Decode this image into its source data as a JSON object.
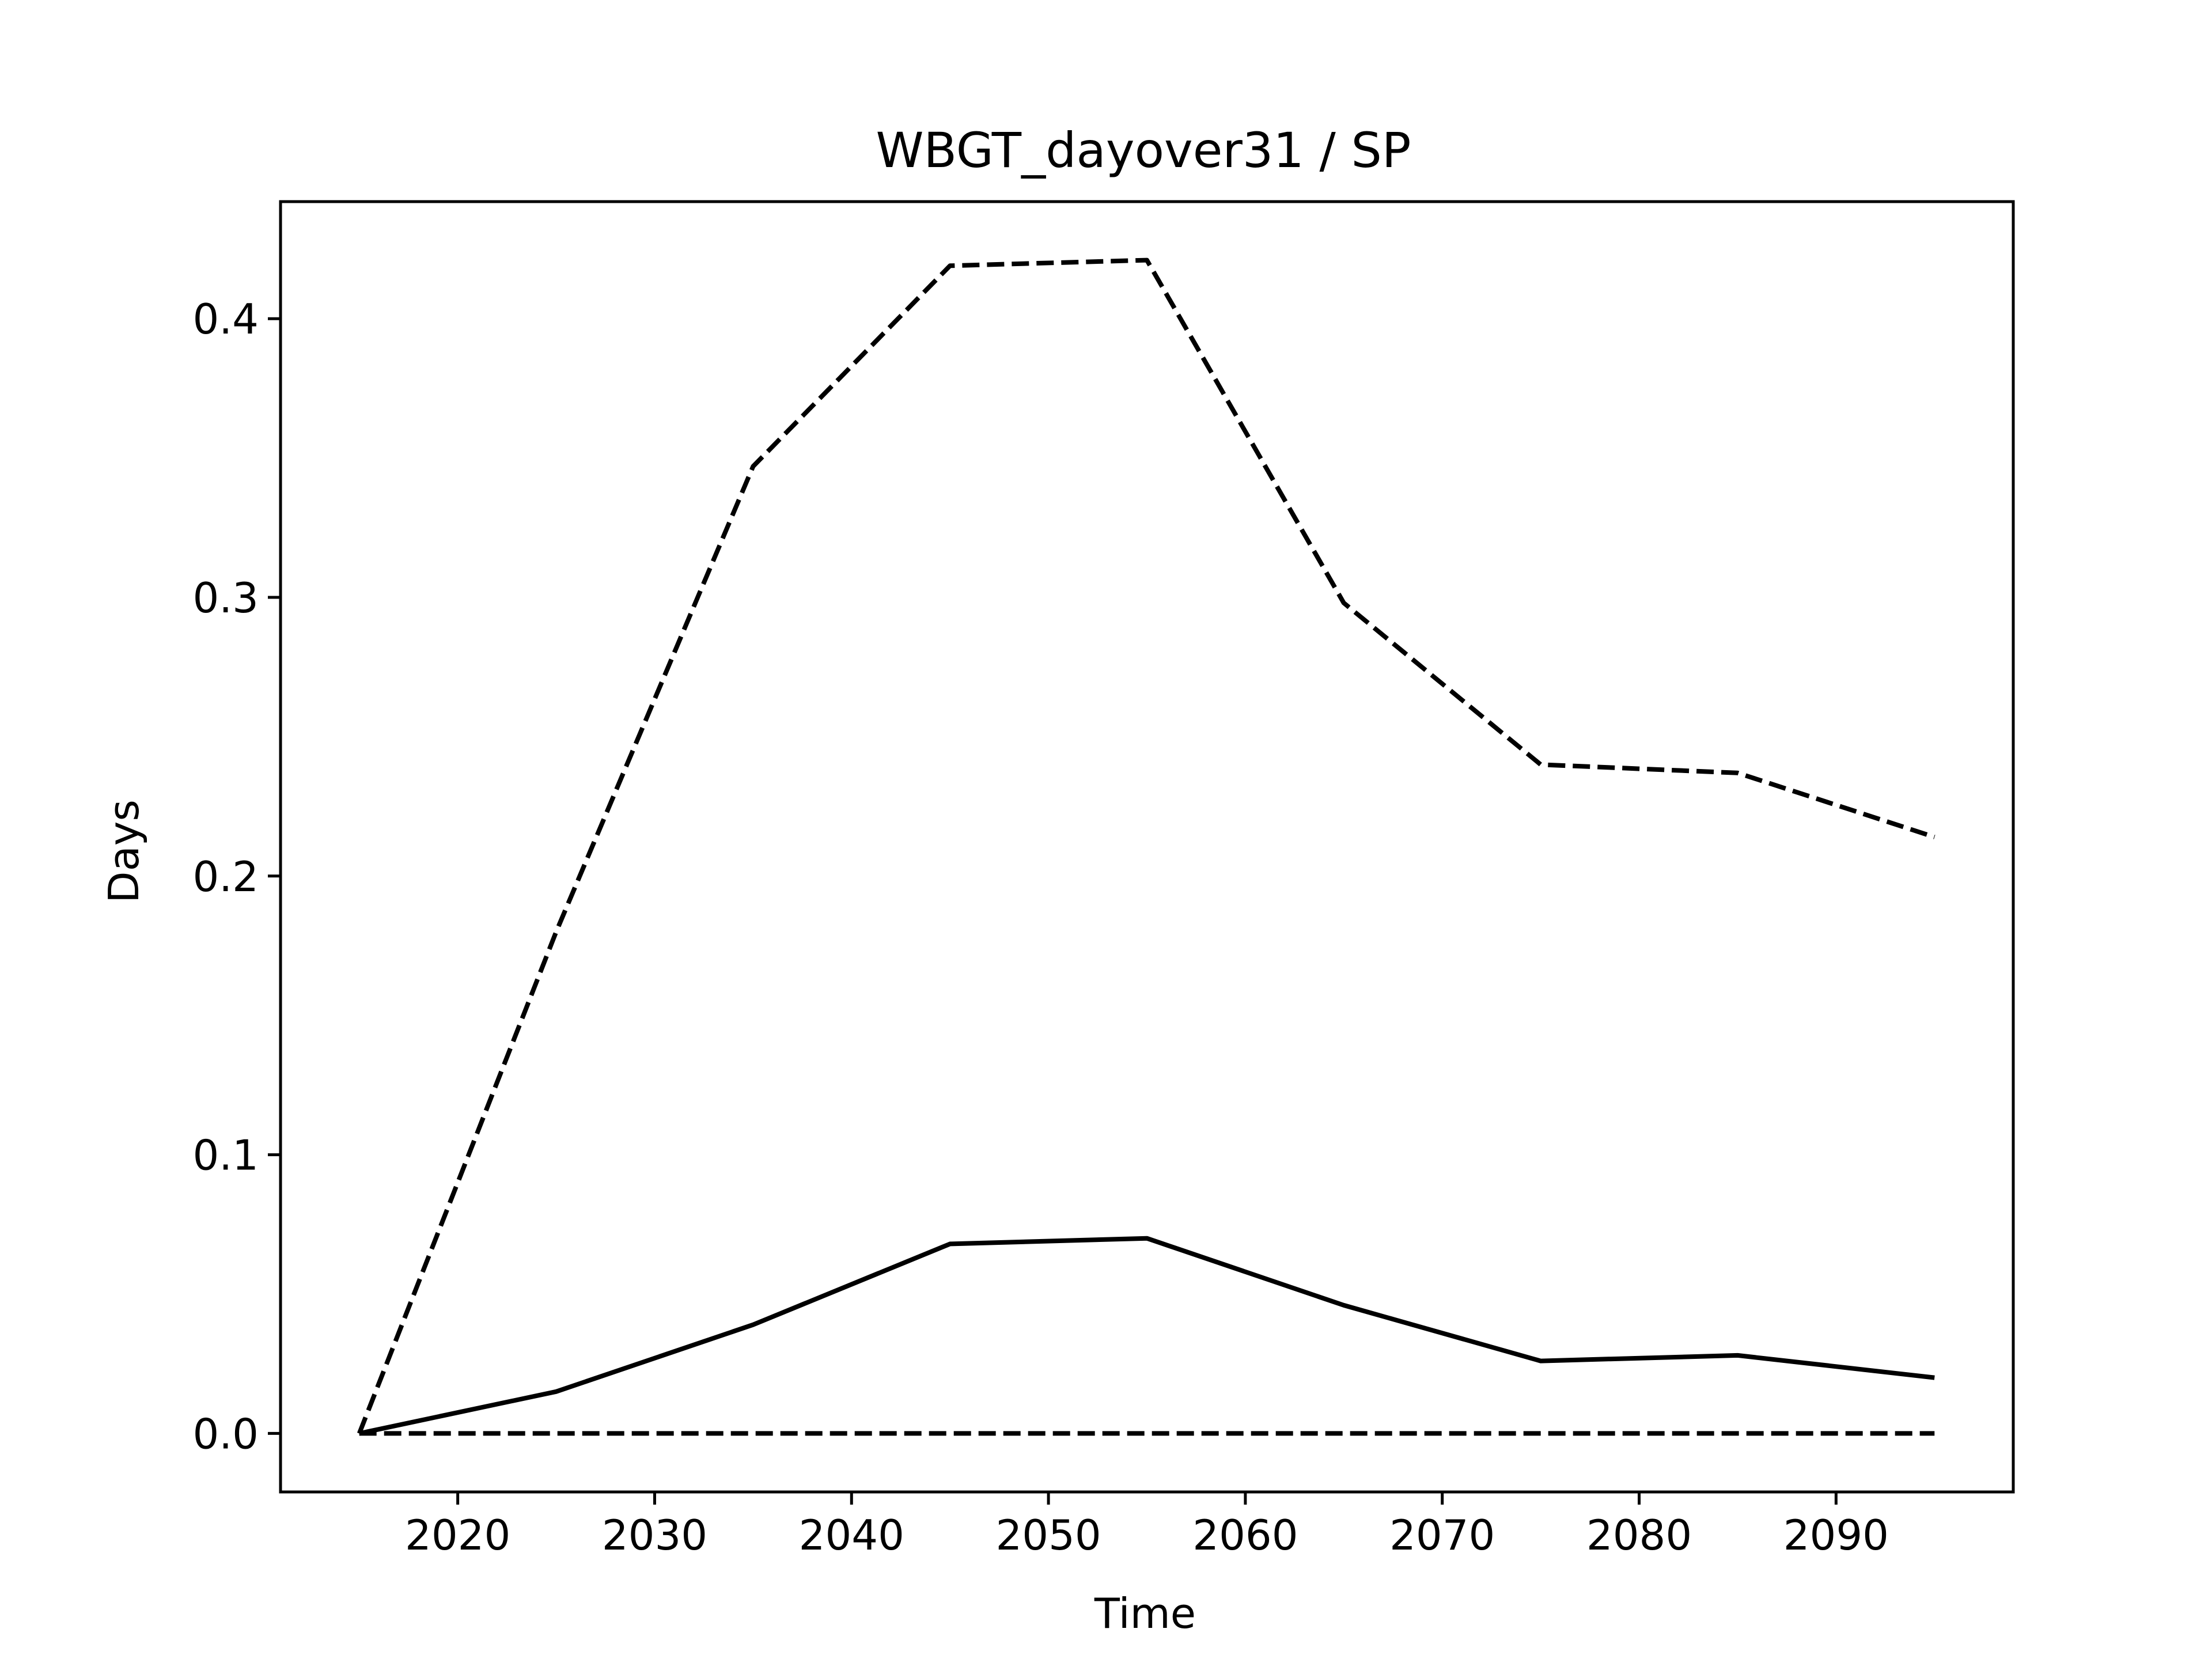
{
  "chart_data": {
    "type": "line",
    "title": "WBGT_dayover31 / SP",
    "xlabel": "Time",
    "ylabel": "Days",
    "xlim": [
      2011,
      2099
    ],
    "ylim": [
      -0.021,
      0.442
    ],
    "xticks": [
      2020,
      2030,
      2040,
      2050,
      2060,
      2070,
      2080,
      2090
    ],
    "xtick_labels": [
      "2020",
      "2030",
      "2040",
      "2050",
      "2060",
      "2070",
      "2080",
      "2090"
    ],
    "yticks": [
      0.0,
      0.1,
      0.2,
      0.3,
      0.4
    ],
    "ytick_labels": [
      "0.0",
      "0.1",
      "0.2",
      "0.3",
      "0.4"
    ],
    "grid": false,
    "legend": false,
    "x": [
      2015,
      2025,
      2035,
      2045,
      2055,
      2065,
      2075,
      2085,
      2095
    ],
    "series": [
      {
        "style": "dashed",
        "color": "#000000",
        "values": [
          0.0,
          0.18,
          0.347,
          0.419,
          0.421,
          0.298,
          0.24,
          0.237,
          0.214
        ]
      },
      {
        "style": "solid",
        "color": "#000000",
        "values": [
          0.0,
          0.015,
          0.039,
          0.068,
          0.07,
          0.046,
          0.026,
          0.028,
          0.02
        ]
      },
      {
        "style": "dashed",
        "color": "#000000",
        "values": [
          0.0,
          0.0,
          0.0,
          0.0,
          0.0,
          0.0,
          0.0,
          0.0,
          0.0
        ]
      }
    ]
  }
}
